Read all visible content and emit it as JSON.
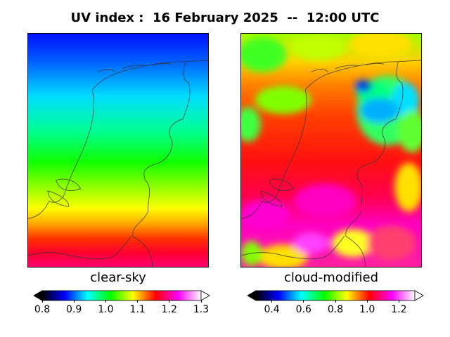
{
  "title": "UV index :  16 February 2025  --  12:00 UTC",
  "panels": [
    {
      "label": "clear-sky",
      "colorbar_ticks": [
        "0.8",
        "0.9",
        "1.0",
        "1.1",
        "1.2",
        "1.3"
      ],
      "colorbar_range": [
        0.8,
        1.3
      ]
    },
    {
      "label": "cloud-modified",
      "colorbar_ticks": [
        "0.4",
        "0.6",
        "0.8",
        "1.0",
        "1.2"
      ],
      "colorbar_range": [
        0.3,
        1.3
      ]
    }
  ],
  "colors": {
    "scale": [
      "#000000",
      "#0000ff",
      "#00ffff",
      "#00ff00",
      "#ffff00",
      "#ff0000",
      "#ff00ff",
      "#ffffff"
    ]
  }
}
